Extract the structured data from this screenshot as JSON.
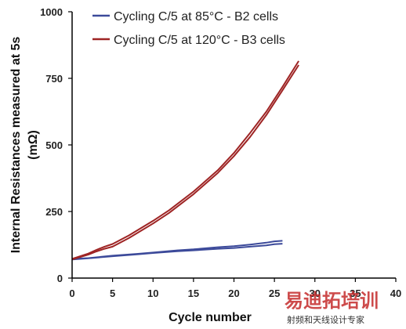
{
  "chart_data": {
    "type": "line",
    "xlabel": "Cycle number",
    "ylabel_lines": [
      "Internal Resistances measured at 5s",
      "(mΩ)"
    ],
    "xlim": [
      0,
      40
    ],
    "ylim": [
      0,
      1000
    ],
    "xticks": [
      0,
      5,
      10,
      15,
      20,
      25,
      30,
      35,
      40
    ],
    "yticks": [
      0,
      250,
      500,
      750,
      1000
    ],
    "grid": false,
    "legend_position": "top-left",
    "series": [
      {
        "name": "Cycling C/5 at 85°C - B2 cells",
        "color": "#3c4a9a",
        "upper": [
          [
            0,
            72
          ],
          [
            2,
            75
          ],
          [
            5,
            84
          ],
          [
            8,
            91
          ],
          [
            10,
            96
          ],
          [
            13,
            104
          ],
          [
            15,
            108
          ],
          [
            18,
            116
          ],
          [
            20,
            120
          ],
          [
            22,
            126
          ],
          [
            24,
            133
          ],
          [
            25,
            138
          ],
          [
            26,
            140
          ]
        ],
        "lower": [
          [
            0,
            70
          ],
          [
            2,
            74
          ],
          [
            5,
            82
          ],
          [
            8,
            89
          ],
          [
            10,
            94
          ],
          [
            13,
            101
          ],
          [
            15,
            104
          ],
          [
            18,
            110
          ],
          [
            20,
            113
          ],
          [
            22,
            118
          ],
          [
            24,
            123
          ],
          [
            25,
            127
          ],
          [
            26,
            129
          ]
        ]
      },
      {
        "name": "Cycling C/5 at 120°C - B3 cells",
        "color": "#9e2424",
        "upper": [
          [
            0,
            72
          ],
          [
            2,
            92
          ],
          [
            3,
            106
          ],
          [
            4,
            118
          ],
          [
            5,
            128
          ],
          [
            7,
            160
          ],
          [
            10,
            215
          ],
          [
            12,
            255
          ],
          [
            15,
            325
          ],
          [
            18,
            405
          ],
          [
            20,
            470
          ],
          [
            22,
            545
          ],
          [
            24,
            625
          ],
          [
            26,
            718
          ],
          [
            28,
            815
          ]
        ],
        "lower": [
          [
            0,
            70
          ],
          [
            2,
            88
          ],
          [
            3,
            100
          ],
          [
            4,
            110
          ],
          [
            5,
            118
          ],
          [
            7,
            150
          ],
          [
            10,
            205
          ],
          [
            12,
            245
          ],
          [
            15,
            315
          ],
          [
            18,
            395
          ],
          [
            20,
            458
          ],
          [
            22,
            530
          ],
          [
            24,
            612
          ],
          [
            26,
            705
          ],
          [
            28,
            800
          ]
        ]
      }
    ]
  },
  "watermark": {
    "logo_text": "易迪拓培训",
    "tagline": "射频和天线设计专家"
  }
}
